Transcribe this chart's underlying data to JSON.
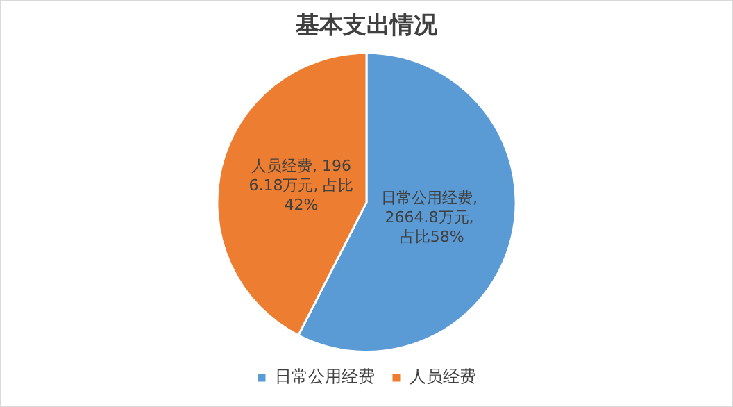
{
  "chart_data": {
    "type": "pie",
    "title": "基本支出情况",
    "categories": [
      "日常公用经费",
      "人员经费"
    ],
    "values": [
      2664.8,
      1966.18
    ],
    "colors": [
      "#5b9bd5",
      "#ed7d31"
    ],
    "value_labels": [
      "日常公用经费, 2664.8万元, 占比58%",
      "人员经费, 1966.18万元, 占比42%"
    ],
    "legend": "bottom"
  }
}
